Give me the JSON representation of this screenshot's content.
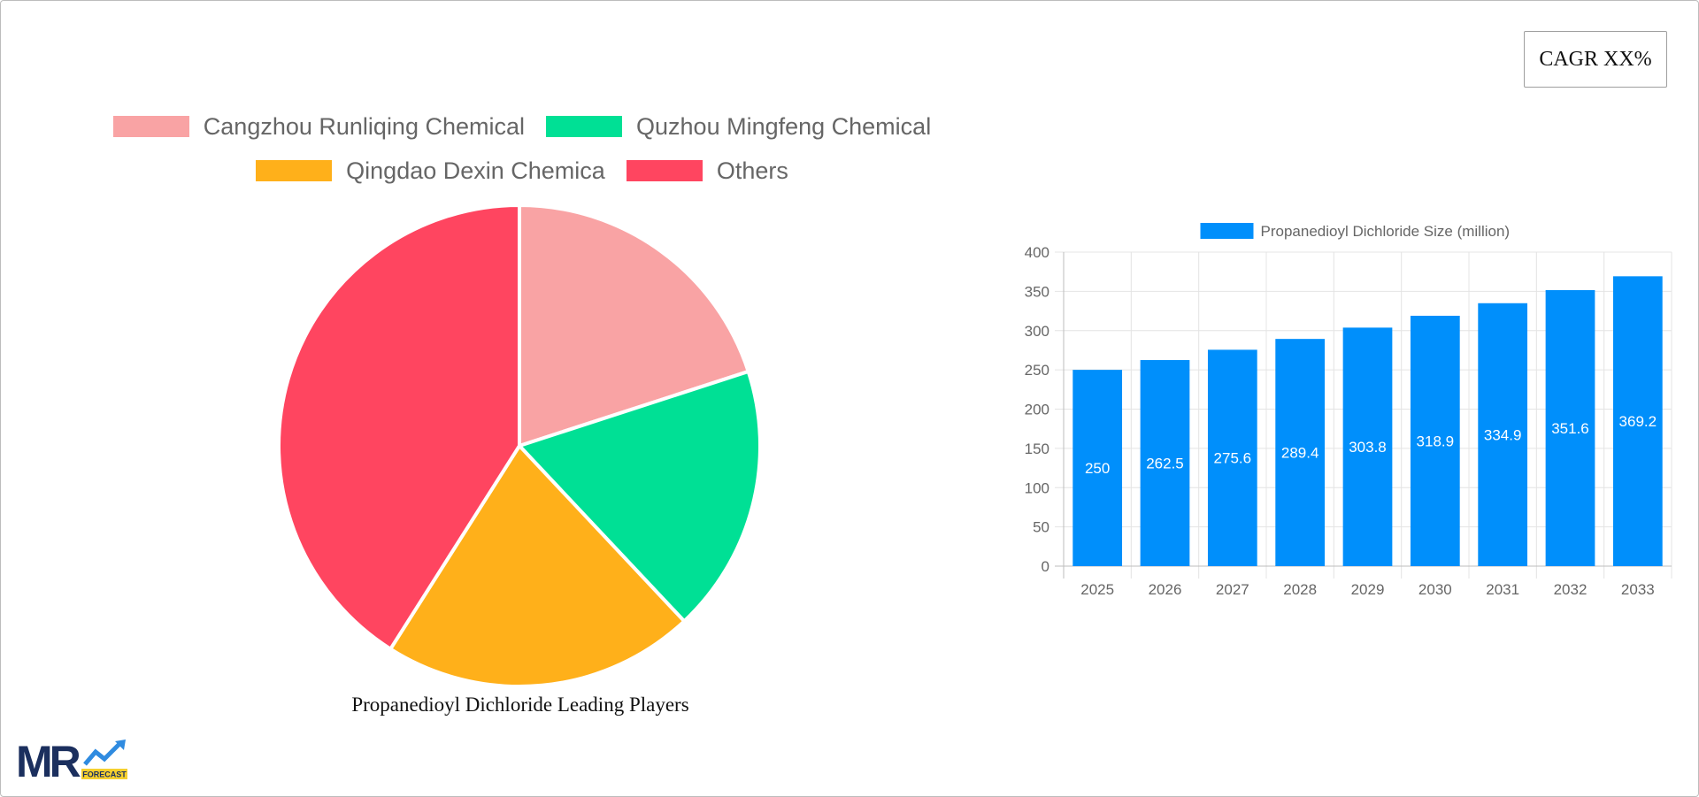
{
  "cagr_label": "CAGR XX%",
  "logo": {
    "text": "MR",
    "badge": "FORECAST",
    "colors": {
      "navy": "#1b2f5e",
      "blue": "#2f8be0",
      "yellow": "#f6d02e"
    }
  },
  "chart_data": [
    {
      "type": "pie",
      "title": "Propanedioyl Dichloride Leading Players",
      "legend_position": "top",
      "labels": [
        "Cangzhou Runliqing Chemical",
        "Quzhou Mingfeng Chemical",
        "Qingdao Dexin Chemica",
        "Others"
      ],
      "values": [
        20,
        18,
        21,
        41
      ],
      "colors": [
        "#f9a3a4",
        "#00e095",
        "#ffb01a",
        "#ff4560"
      ]
    },
    {
      "type": "bar",
      "legend_position": "top",
      "categories": [
        "2025",
        "2026",
        "2027",
        "2028",
        "2029",
        "2030",
        "2031",
        "2032",
        "2033"
      ],
      "series": [
        {
          "name": "Propanedioyl Dichloride Size (million)",
          "values": [
            250,
            262.5,
            275.6,
            289.4,
            303.8,
            318.9,
            334.9,
            351.6,
            369.2
          ],
          "color": "#008ffb"
        }
      ],
      "ylim": [
        0,
        400
      ],
      "yticks": [
        0,
        50,
        100,
        150,
        200,
        250,
        300,
        350,
        400
      ],
      "grid": true,
      "data_labels": true
    }
  ]
}
